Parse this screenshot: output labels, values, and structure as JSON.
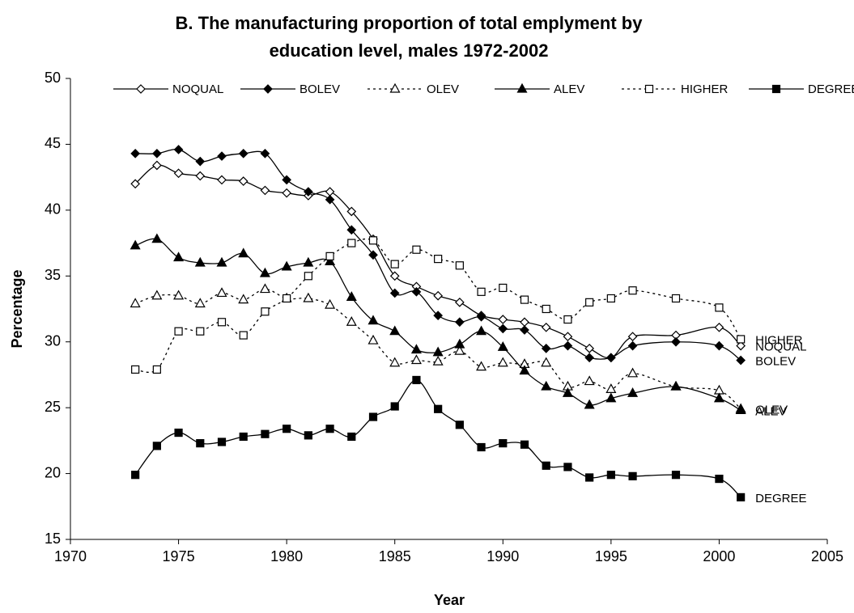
{
  "chart_data": {
    "type": "line",
    "title": [
      "B. The manufacturing proportion of total emplyment by",
      "education level, males 1972-2002"
    ],
    "x_label": "Year",
    "y_label": "Percentage",
    "x": [
      1973,
      1974,
      1975,
      1976,
      1977,
      1978,
      1979,
      1980,
      1981,
      1982,
      1983,
      1984,
      1985,
      1986,
      1987,
      1988,
      1989,
      1990,
      1991,
      1992,
      1993,
      1994,
      1995,
      1996,
      1998,
      2000,
      2001
    ],
    "xlim": [
      1970,
      2005
    ],
    "xticks": [
      1970,
      1975,
      1980,
      1985,
      1990,
      1995,
      2000,
      2005
    ],
    "ylim": [
      15,
      50
    ],
    "yticks": [
      15,
      20,
      25,
      30,
      35,
      40,
      45,
      50
    ],
    "grid": false,
    "legend": "top",
    "end_labels": true,
    "series": [
      {
        "name": "NOQUAL",
        "color": "#000000",
        "marker": "diamond",
        "filled": false,
        "dashed": false,
        "values": [
          42.0,
          43.4,
          42.8,
          42.6,
          42.3,
          42.2,
          41.5,
          41.3,
          41.1,
          41.4,
          39.9,
          37.8,
          35.0,
          34.2,
          33.5,
          33.0,
          32.0,
          31.7,
          31.5,
          31.1,
          30.4,
          29.5,
          28.8,
          30.4,
          30.5,
          31.1,
          29.7
        ]
      },
      {
        "name": "BOLEV",
        "color": "#000000",
        "marker": "diamond",
        "filled": true,
        "dashed": false,
        "values": [
          44.3,
          44.3,
          44.6,
          43.7,
          44.1,
          44.3,
          44.3,
          42.3,
          41.4,
          40.8,
          38.5,
          36.6,
          33.7,
          33.8,
          32.0,
          31.5,
          31.9,
          31.0,
          30.9,
          29.5,
          29.7,
          28.8,
          28.8,
          29.7,
          30.0,
          29.7,
          28.6
        ]
      },
      {
        "name": "OLEV",
        "color": "#000000",
        "marker": "triangle",
        "filled": false,
        "dashed": true,
        "values": [
          32.9,
          33.5,
          33.5,
          32.9,
          33.7,
          33.2,
          34.0,
          33.3,
          33.3,
          32.8,
          31.5,
          30.1,
          28.4,
          28.6,
          28.5,
          29.3,
          28.1,
          28.4,
          28.3,
          28.4,
          26.6,
          27.0,
          26.4,
          27.6,
          26.6,
          26.3,
          24.9
        ]
      },
      {
        "name": "ALEV",
        "color": "#000000",
        "marker": "triangle",
        "filled": true,
        "dashed": false,
        "values": [
          37.3,
          37.8,
          36.4,
          36.0,
          36.0,
          36.7,
          35.2,
          35.7,
          36.0,
          36.1,
          33.4,
          31.6,
          30.8,
          29.4,
          29.2,
          29.8,
          30.8,
          29.6,
          27.8,
          26.6,
          26.1,
          25.2,
          25.7,
          26.1,
          26.6,
          25.7,
          24.8
        ]
      },
      {
        "name": "HIGHER",
        "color": "#000000",
        "marker": "square",
        "filled": false,
        "dashed": true,
        "values": [
          27.9,
          27.9,
          30.8,
          30.8,
          31.5,
          30.5,
          32.3,
          33.3,
          35.0,
          36.5,
          37.5,
          37.7,
          35.9,
          37.0,
          36.3,
          35.8,
          33.8,
          34.1,
          33.2,
          32.5,
          31.7,
          33.0,
          33.3,
          33.9,
          33.3,
          32.6,
          30.2
        ]
      },
      {
        "name": "DEGREE",
        "color": "#000000",
        "marker": "square",
        "filled": true,
        "dashed": false,
        "values": [
          19.9,
          22.1,
          23.1,
          22.3,
          22.4,
          22.8,
          23.0,
          23.4,
          22.9,
          23.4,
          22.8,
          24.3,
          25.1,
          27.1,
          24.9,
          23.7,
          22.0,
          22.3,
          22.2,
          20.6,
          20.5,
          19.7,
          19.9,
          19.8,
          19.9,
          19.6,
          18.2
        ]
      }
    ]
  }
}
